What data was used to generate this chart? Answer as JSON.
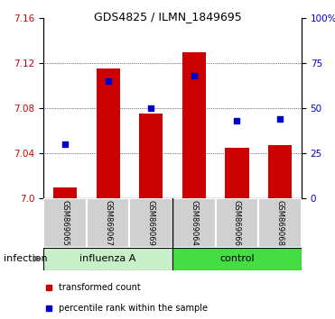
{
  "title": "GDS4825 / ILMN_1849695",
  "samples": [
    "GSM869065",
    "GSM869067",
    "GSM869069",
    "GSM869064",
    "GSM869066",
    "GSM869068"
  ],
  "group_labels": [
    "influenza A",
    "control"
  ],
  "red_values": [
    7.01,
    7.115,
    7.075,
    7.13,
    7.045,
    7.047
  ],
  "blue_pct": [
    30,
    65,
    50,
    68,
    43,
    44
  ],
  "ylim_left": [
    7.0,
    7.16
  ],
  "ylim_right": [
    0,
    100
  ],
  "yticks_left": [
    7.0,
    7.04,
    7.08,
    7.12,
    7.16
  ],
  "yticks_right": [
    0,
    25,
    50,
    75,
    100
  ],
  "bar_color": "#cc0000",
  "dot_color": "#0000cc",
  "bar_bottom": 7.0,
  "left_tick_color": "#cc0000",
  "right_tick_color": "#0000cc",
  "infection_label": "infection",
  "legend_red": "transformed count",
  "legend_blue": "percentile rank within the sample",
  "influenza_color": "#c8f0c8",
  "control_color": "#44dd44",
  "sample_box_color": "#d0d0d0",
  "title_fontsize": 9,
  "tick_fontsize": 7.5,
  "sample_fontsize": 6,
  "group_fontsize": 8,
  "legend_fontsize": 7,
  "infection_fontsize": 8
}
